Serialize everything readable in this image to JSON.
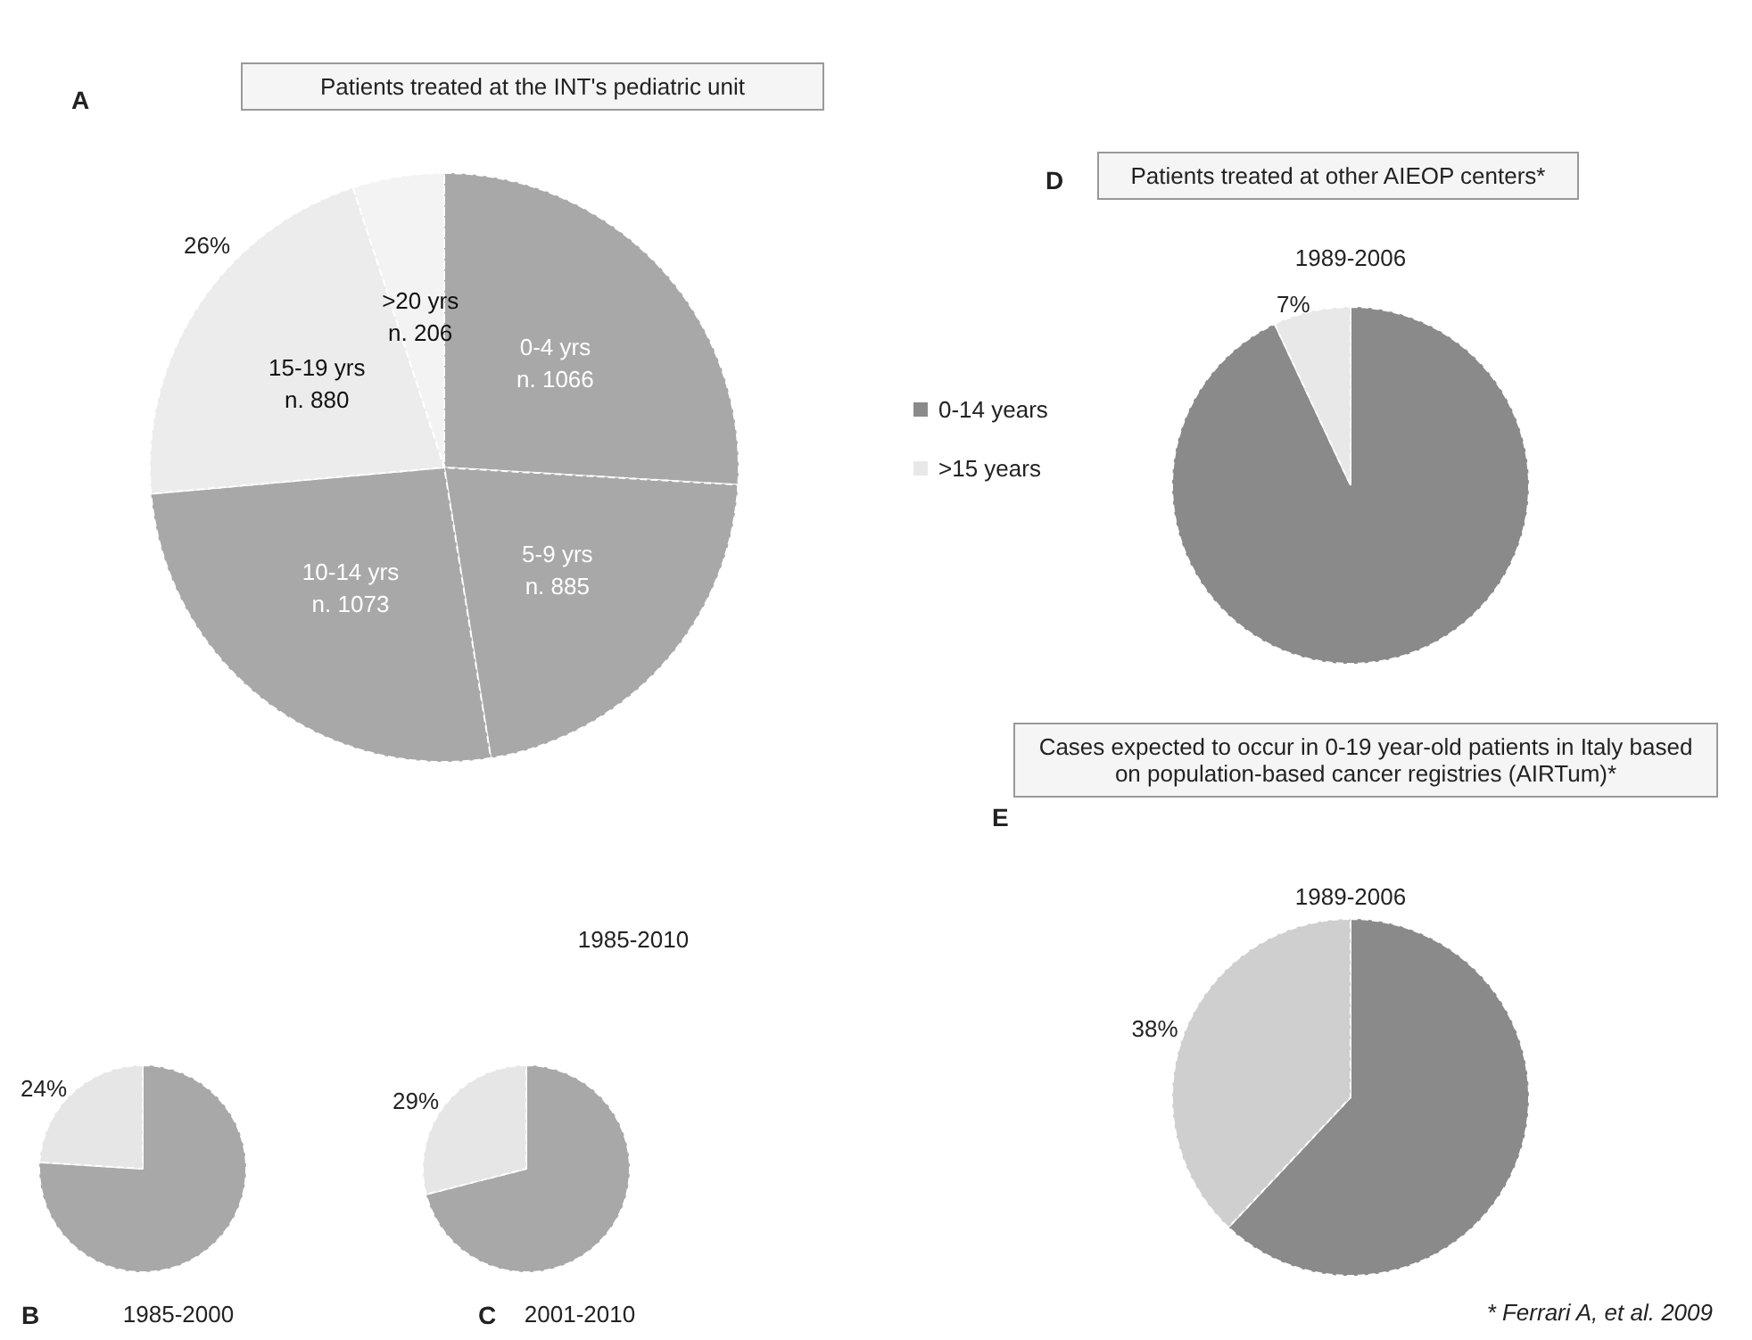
{
  "chart_data": [
    {
      "type": "pie",
      "title": "Patients treated at the INT's pediatric unit",
      "subtitle": "1985-2010",
      "categories": [
        "0-4 yrs",
        "5-9 yrs",
        "10-14 yrs",
        "15-19 yrs",
        ">20 yrs"
      ],
      "values": [
        1066,
        885,
        1073,
        880,
        206
      ],
      "colors": [
        "#a8a8a8",
        "#a8a8a8",
        "#a8a8a8",
        "#ececec",
        "#f3f3f3"
      ],
      "value_labels": [
        "n. 1066",
        "n. 885",
        "n. 1073",
        "n. 880",
        "n. 206"
      ],
      "annotations": [
        "A",
        "26%"
      ],
      "legend": false
    },
    {
      "type": "pie",
      "subtitle": "1985-2000",
      "categories": [
        null,
        null
      ],
      "values": [
        76,
        24
      ],
      "colors": [
        "#a8a8a8",
        "#e6e6e6"
      ],
      "value_labels": [
        null,
        "24%"
      ],
      "annotations": [
        "B"
      ],
      "legend": false
    },
    {
      "type": "pie",
      "subtitle": "2001-2010",
      "categories": [
        null,
        null
      ],
      "values": [
        71,
        29
      ],
      "colors": [
        "#a8a8a8",
        "#e6e6e6"
      ],
      "value_labels": [
        null,
        "29%"
      ],
      "annotations": [
        "C"
      ],
      "legend": false
    },
    {
      "type": "pie",
      "title": "Patients treated at other AIEOP centers*",
      "subtitle": "1989-2006",
      "categories": [
        "0-14 years",
        ">15 years"
      ],
      "values": [
        93,
        7
      ],
      "colors": [
        "#8a8a8a",
        "#e8e8e8"
      ],
      "value_labels": [
        null,
        "7%"
      ],
      "annotations": [
        "D"
      ],
      "legend": "left"
    },
    {
      "type": "pie",
      "title": "Cases expected to occur in 0-19 year-old patients in Italy based on population-based cancer registries (AIRTum)*",
      "subtitle": "1989-2006",
      "categories": [
        null,
        null
      ],
      "values": [
        62,
        38
      ],
      "colors": [
        "#8a8a8a",
        "#cfcfcf"
      ],
      "value_labels": [
        null,
        "38%"
      ],
      "annotations": [
        "E",
        "* Ferrari A, et al. 2009"
      ],
      "legend": false
    }
  ]
}
